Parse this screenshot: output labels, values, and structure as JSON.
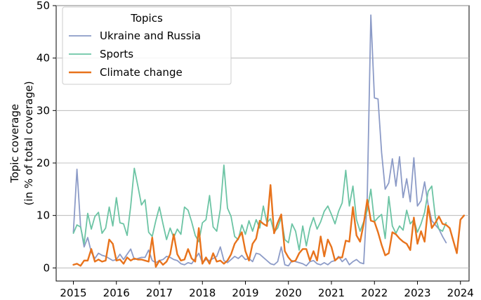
{
  "chart_data": {
    "type": "line",
    "title": "",
    "xlabel": "",
    "ylabel_line1": "Topic coverage",
    "ylabel_line2": "(in % of total coverage)",
    "xlim": [
      2014.6,
      2024.2
    ],
    "ylim": [
      -2.5,
      50
    ],
    "x_ticks": [
      2015,
      2016,
      2017,
      2018,
      2019,
      2020,
      2021,
      2022,
      2023,
      2024
    ],
    "x_tick_labels": [
      "2015",
      "2016",
      "2017",
      "2018",
      "2019",
      "2020",
      "2021",
      "2022",
      "2023",
      "2024"
    ],
    "y_ticks": [
      0,
      10,
      20,
      30,
      40,
      50
    ],
    "y_tick_labels": [
      "0",
      "10",
      "20",
      "30",
      "40",
      "50"
    ],
    "x_start": 2015.0,
    "x_step": 0.08333,
    "legend": {
      "title": "Topics",
      "position": "top-left"
    },
    "series": [
      {
        "name": "Ukraine and Russia",
        "color": "#8c9bc7",
        "width": 1.8,
        "values": [
          6.8,
          18.8,
          8.0,
          4.0,
          5.8,
          3.0,
          1.8,
          2.8,
          2.4,
          2.2,
          1.8,
          1.4,
          1.6,
          2.6,
          1.6,
          2.6,
          3.6,
          1.6,
          1.8,
          2.0,
          2.0,
          3.4,
          1.4,
          1.0,
          1.4,
          1.6,
          2.2,
          2.0,
          1.6,
          1.4,
          0.8,
          0.6,
          1.0,
          0.8,
          1.8,
          2.8,
          1.0,
          1.6,
          1.4,
          1.8,
          2.2,
          4.0,
          1.4,
          1.0,
          1.6,
          2.2,
          1.8,
          2.4,
          1.6,
          1.8,
          1.2,
          2.8,
          2.6,
          2.0,
          1.4,
          0.8,
          0.6,
          1.2,
          4.0,
          0.6,
          0.4,
          1.4,
          1.2,
          1.0,
          0.8,
          0.4,
          1.2,
          1.4,
          0.8,
          0.6,
          1.0,
          0.6,
          1.2,
          1.4,
          2.2,
          1.2,
          1.8,
          0.6,
          1.2,
          1.6,
          1.0,
          0.8,
          13.6,
          48.2,
          32.4,
          32.2,
          22.0,
          15.0,
          16.2,
          20.8,
          15.6,
          21.2,
          13.4,
          17.0,
          12.6,
          21.0,
          11.8,
          12.8,
          16.4,
          12.0,
          9.0,
          8.2,
          7.4,
          6.0,
          4.8
        ]
      },
      {
        "name": "Sports",
        "color": "#6cc4a4",
        "width": 1.8,
        "values": [
          6.6,
          8.2,
          7.8,
          4.6,
          10.4,
          7.4,
          9.8,
          10.6,
          6.6,
          7.6,
          11.6,
          8.0,
          13.4,
          8.6,
          8.4,
          6.2,
          11.8,
          19.0,
          15.6,
          12.0,
          13.0,
          6.8,
          6.0,
          9.0,
          11.6,
          8.4,
          5.4,
          7.6,
          5.8,
          7.4,
          6.4,
          11.6,
          11.0,
          8.8,
          6.2,
          5.0,
          8.6,
          9.2,
          13.8,
          7.8,
          7.0,
          11.2,
          19.6,
          11.4,
          9.8,
          6.0,
          5.4,
          8.2,
          6.4,
          9.0,
          7.0,
          9.2,
          7.6,
          11.8,
          8.6,
          9.4,
          6.8,
          7.6,
          9.6,
          5.4,
          4.8,
          8.4,
          7.0,
          3.4,
          8.0,
          4.2,
          7.6,
          9.6,
          7.4,
          8.8,
          10.8,
          11.8,
          10.2,
          8.4,
          10.8,
          12.4,
          18.6,
          11.8,
          15.6,
          9.2,
          7.0,
          8.8,
          11.0,
          15.0,
          8.8,
          9.6,
          10.2,
          5.6,
          13.6,
          8.0,
          6.6,
          8.0,
          7.2,
          11.0,
          8.4,
          9.2,
          6.8,
          8.4,
          10.6,
          14.6,
          15.6,
          9.6,
          7.4,
          7.0,
          8.6
        ]
      },
      {
        "name": "Climate change",
        "color": "#e8731c",
        "width": 2.4,
        "values": [
          0.6,
          0.8,
          0.4,
          1.4,
          1.4,
          3.6,
          1.2,
          1.6,
          1.2,
          1.4,
          5.4,
          4.6,
          1.4,
          1.6,
          0.8,
          2.0,
          1.4,
          1.8,
          1.6,
          1.6,
          1.4,
          1.2,
          5.8,
          0.2,
          1.4,
          0.6,
          1.2,
          2.6,
          6.4,
          2.6,
          1.4,
          1.6,
          3.6,
          1.8,
          1.2,
          7.6,
          0.8,
          2.0,
          0.8,
          2.8,
          1.2,
          1.4,
          0.8,
          1.4,
          2.6,
          4.6,
          5.6,
          6.8,
          3.2,
          1.4,
          4.6,
          5.6,
          9.0,
          8.4,
          8.0,
          15.8,
          6.6,
          8.6,
          10.2,
          3.2,
          2.0,
          1.2,
          1.4,
          2.8,
          3.6,
          3.6,
          1.4,
          3.2,
          1.4,
          6.0,
          2.2,
          5.4,
          4.0,
          1.4,
          2.0,
          2.0,
          5.2,
          5.0,
          11.6,
          6.2,
          5.0,
          8.4,
          13.0,
          9.0,
          8.8,
          6.8,
          4.4,
          2.4,
          2.8,
          6.8,
          6.4,
          5.6,
          5.0,
          4.6,
          3.4,
          9.6,
          4.6,
          7.0,
          5.0,
          11.8,
          7.6,
          8.6,
          9.8,
          8.4,
          8.2,
          7.6,
          5.2,
          2.8,
          9.2,
          10.0
        ]
      }
    ]
  }
}
